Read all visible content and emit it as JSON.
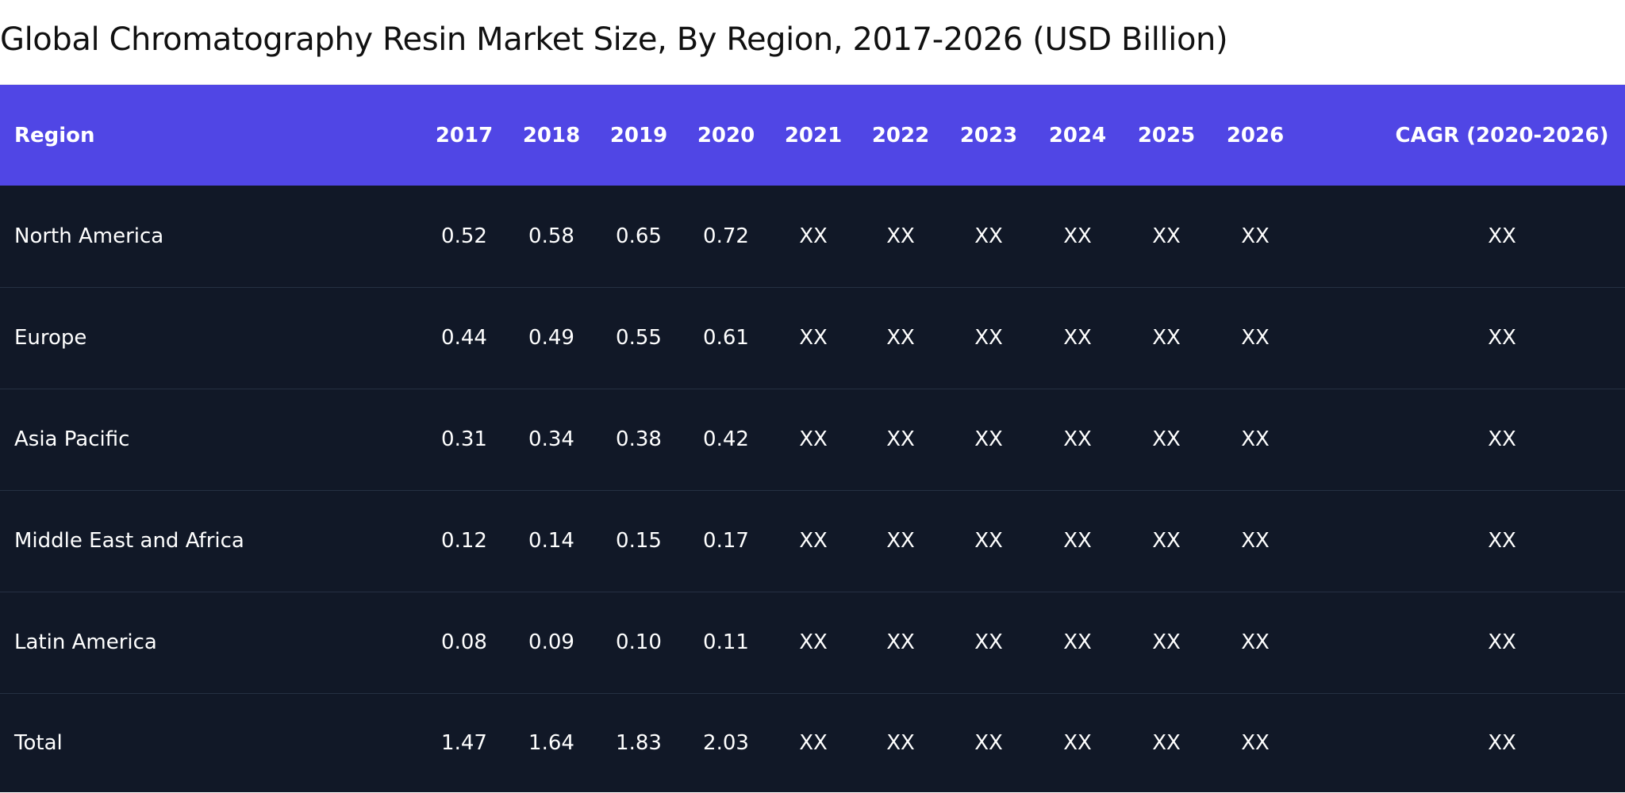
{
  "chart_data": {
    "type": "table",
    "title": "Global Chromatography Resin Market Size, By Region, 2017-2026 (USD Billion)",
    "columns": [
      "Region",
      "2017",
      "2018",
      "2019",
      "2020",
      "2021",
      "2022",
      "2023",
      "2024",
      "2025",
      "2026",
      "CAGR (2020-2026)"
    ],
    "rows": [
      [
        "North America",
        "0.52",
        "0.58",
        "0.65",
        "0.72",
        "XX",
        "XX",
        "XX",
        "XX",
        "XX",
        "XX",
        "XX"
      ],
      [
        "Europe",
        "0.44",
        "0.49",
        "0.55",
        "0.61",
        "XX",
        "XX",
        "XX",
        "XX",
        "XX",
        "XX",
        "XX"
      ],
      [
        "Asia Pacific",
        "0.31",
        "0.34",
        "0.38",
        "0.42",
        "XX",
        "XX",
        "XX",
        "XX",
        "XX",
        "XX",
        "XX"
      ],
      [
        "Middle East and Africa",
        "0.12",
        "0.14",
        "0.15",
        "0.17",
        "XX",
        "XX",
        "XX",
        "XX",
        "XX",
        "XX",
        "XX"
      ],
      [
        "Latin America",
        "0.08",
        "0.09",
        "0.10",
        "0.11",
        "XX",
        "XX",
        "XX",
        "XX",
        "XX",
        "XX",
        "XX"
      ],
      [
        "Total",
        "1.47",
        "1.64",
        "1.83",
        "2.03",
        "XX",
        "XX",
        "XX",
        "XX",
        "XX",
        "XX",
        "XX"
      ]
    ],
    "colors": {
      "header_bg": "#5046e5",
      "body_bg": "#111827",
      "text": "#ffffff"
    }
  }
}
